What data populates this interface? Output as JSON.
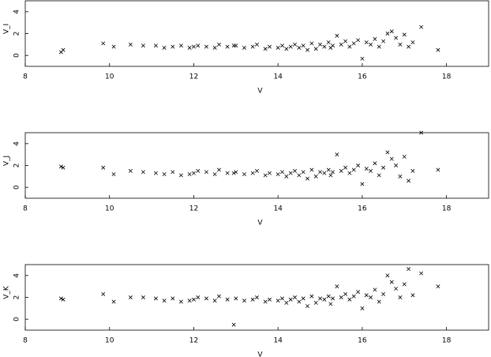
{
  "chart_data": [
    {
      "type": "scatter",
      "xlabel": "V",
      "ylabel": "V_I",
      "xlim": [
        8,
        19
      ],
      "ylim": [
        -1,
        5
      ],
      "xticks": [
        8,
        10,
        12,
        14,
        16,
        18
      ],
      "yticks": [
        0,
        2,
        4
      ],
      "marker": "x",
      "color": "#000000",
      "x": [
        8.85,
        8.9,
        9.85,
        10.1,
        10.5,
        10.8,
        11.1,
        11.3,
        11.5,
        11.7,
        11.9,
        12.0,
        12.1,
        12.3,
        12.5,
        12.6,
        12.8,
        13.0,
        13.2,
        13.4,
        13.5,
        13.7,
        13.8,
        14.0,
        14.1,
        14.2,
        14.3,
        14.4,
        14.5,
        14.6,
        14.7,
        14.8,
        14.9,
        15.0,
        15.1,
        15.2,
        15.3,
        15.4,
        15.5,
        15.6,
        15.7,
        15.8,
        15.9,
        16.0,
        16.1,
        16.2,
        16.3,
        16.4,
        16.5,
        16.6,
        16.7,
        16.8,
        16.9,
        17.0,
        17.1,
        17.2,
        17.4,
        17.8,
        12.95,
        15.25
      ],
      "values": [
        0.3,
        0.5,
        1.1,
        0.8,
        1.0,
        0.9,
        0.9,
        0.7,
        0.8,
        0.9,
        0.7,
        0.8,
        0.9,
        0.8,
        0.7,
        1.0,
        0.8,
        0.9,
        0.7,
        0.8,
        1.0,
        0.6,
        0.8,
        0.7,
        0.9,
        0.6,
        0.8,
        1.0,
        0.7,
        0.9,
        0.5,
        1.1,
        0.6,
        1.0,
        0.8,
        1.2,
        0.9,
        1.8,
        1.0,
        1.3,
        0.8,
        1.1,
        1.4,
        -0.3,
        1.2,
        1.0,
        1.5,
        0.8,
        1.3,
        2.0,
        2.2,
        1.6,
        1.0,
        1.9,
        0.8,
        1.2,
        2.6,
        0.5,
        0.9,
        0.7
      ]
    },
    {
      "type": "scatter",
      "xlabel": "V",
      "ylabel": "V_J",
      "xlim": [
        8,
        19
      ],
      "ylim": [
        -1,
        5
      ],
      "xticks": [
        8,
        10,
        12,
        14,
        16,
        18
      ],
      "yticks": [
        0,
        2,
        4
      ],
      "marker": "x",
      "color": "#000000",
      "x": [
        8.85,
        8.9,
        9.85,
        10.1,
        10.5,
        10.8,
        11.1,
        11.3,
        11.5,
        11.7,
        11.9,
        12.0,
        12.1,
        12.3,
        12.5,
        12.6,
        12.8,
        13.0,
        13.2,
        13.4,
        13.5,
        13.7,
        13.8,
        14.0,
        14.1,
        14.2,
        14.3,
        14.4,
        14.5,
        14.6,
        14.7,
        14.8,
        14.9,
        15.0,
        15.1,
        15.2,
        15.3,
        15.4,
        15.5,
        15.6,
        15.7,
        15.8,
        15.9,
        16.0,
        16.1,
        16.2,
        16.3,
        16.4,
        16.5,
        16.6,
        16.7,
        16.8,
        16.9,
        17.0,
        17.1,
        17.2,
        17.4,
        17.8,
        12.95,
        15.25
      ],
      "values": [
        1.9,
        1.8,
        1.8,
        1.2,
        1.5,
        1.4,
        1.3,
        1.2,
        1.4,
        1.1,
        1.2,
        1.3,
        1.5,
        1.4,
        1.2,
        1.6,
        1.3,
        1.4,
        1.2,
        1.3,
        1.5,
        1.1,
        1.3,
        1.2,
        1.4,
        1.0,
        1.3,
        1.5,
        1.1,
        1.4,
        0.8,
        1.6,
        1.0,
        1.4,
        1.3,
        1.6,
        1.4,
        3.0,
        1.5,
        1.8,
        1.3,
        1.6,
        2.0,
        0.3,
        1.7,
        1.5,
        2.2,
        1.1,
        1.8,
        3.2,
        2.6,
        2.0,
        1.0,
        2.8,
        0.6,
        1.5,
        5.0,
        1.6,
        1.3,
        1.1
      ]
    },
    {
      "type": "scatter",
      "xlabel": "V",
      "ylabel": "V_K",
      "xlim": [
        8,
        19
      ],
      "ylim": [
        -1,
        5
      ],
      "xticks": [
        8,
        10,
        12,
        14,
        16,
        18
      ],
      "yticks": [
        0,
        2,
        4
      ],
      "marker": "x",
      "color": "#000000",
      "x": [
        8.85,
        8.9,
        9.85,
        10.1,
        10.5,
        10.8,
        11.1,
        11.3,
        11.5,
        11.7,
        11.9,
        12.0,
        12.1,
        12.3,
        12.5,
        12.6,
        12.8,
        13.0,
        13.2,
        13.4,
        13.5,
        13.7,
        13.8,
        14.0,
        14.1,
        14.2,
        14.3,
        14.4,
        14.5,
        14.6,
        14.7,
        14.8,
        14.9,
        15.0,
        15.1,
        15.2,
        15.3,
        15.4,
        15.5,
        15.6,
        15.7,
        15.8,
        15.9,
        16.0,
        16.1,
        16.2,
        16.3,
        16.4,
        16.5,
        16.6,
        16.7,
        16.8,
        16.9,
        17.0,
        17.1,
        17.2,
        17.4,
        17.8,
        12.95,
        15.25
      ],
      "values": [
        1.9,
        1.8,
        2.3,
        1.6,
        2.0,
        2.0,
        1.9,
        1.7,
        1.9,
        1.6,
        1.7,
        1.8,
        2.0,
        1.9,
        1.7,
        2.1,
        1.8,
        1.9,
        1.7,
        1.8,
        2.0,
        1.6,
        1.8,
        1.7,
        1.9,
        1.5,
        1.8,
        2.0,
        1.6,
        1.9,
        1.2,
        2.1,
        1.5,
        1.9,
        1.8,
        2.1,
        1.9,
        3.0,
        2.0,
        2.3,
        1.8,
        2.1,
        2.5,
        1.0,
        2.2,
        2.0,
        2.7,
        1.6,
        2.3,
        4.0,
        3.4,
        2.8,
        2.0,
        3.2,
        4.6,
        2.2,
        4.2,
        3.0,
        -0.5,
        1.4
      ]
    }
  ]
}
